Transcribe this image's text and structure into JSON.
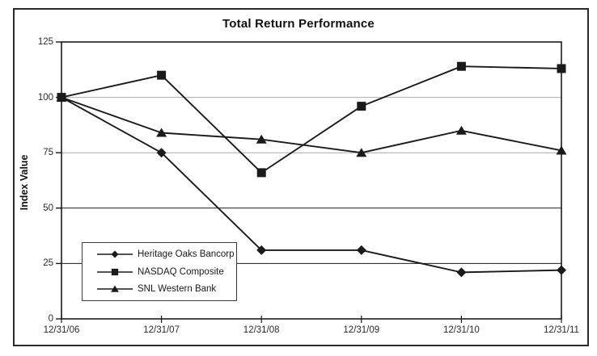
{
  "chart_data": {
    "type": "line",
    "title": "Total Return Performance",
    "ylabel": "Index Value",
    "xlabel": "",
    "ylim": [
      0,
      125
    ],
    "y_ticks": [
      0,
      25,
      50,
      75,
      100,
      125
    ],
    "categories": [
      "12/31/06",
      "12/31/07",
      "12/31/08",
      "12/31/09",
      "12/31/10",
      "12/31/11"
    ],
    "series": [
      {
        "name": "Heritage Oaks Bancorp",
        "marker": "diamond",
        "values": [
          100,
          75,
          31,
          31,
          21,
          22
        ]
      },
      {
        "name": "NASDAQ Composite",
        "marker": "square",
        "values": [
          100,
          110,
          66,
          96,
          114,
          113
        ]
      },
      {
        "name": "SNL Western Bank",
        "marker": "triangle",
        "values": [
          100,
          84,
          81,
          75,
          85,
          76
        ]
      }
    ],
    "legend_position": "lower-left",
    "grid": "horizontal",
    "gridlines": [
      {
        "value": 25,
        "color": "#1a1a1a"
      },
      {
        "value": 50,
        "color": "#1a1a1a"
      },
      {
        "value": 75,
        "color": "#a8a8a8"
      },
      {
        "value": 100,
        "color": "#a8a8a8"
      }
    ],
    "line_color": "#1a1a1a",
    "axis_color": "#1a1a1a",
    "background": "#ffffff"
  }
}
